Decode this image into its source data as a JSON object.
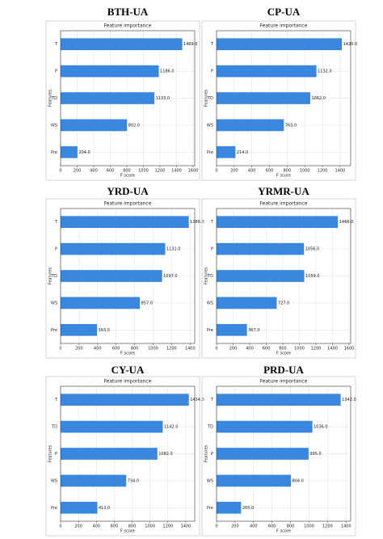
{
  "chart_data": [
    {
      "type": "barh",
      "label": "BTH-UA",
      "title": "Feature importance",
      "xlabel": "F score",
      "ylabel": "Features",
      "categories": [
        "T",
        "P",
        "TD",
        "WS",
        "Pre"
      ],
      "values": [
        1469,
        1186,
        1133,
        802,
        204
      ],
      "value_labels": [
        "1469.0",
        "1186.0",
        "1133.0",
        "802.0",
        "204.0"
      ],
      "color": "#3a87e0",
      "xlim": [
        0,
        1620
      ],
      "xticks": [
        0,
        200,
        400,
        600,
        800,
        1000,
        1200,
        1400,
        1600
      ],
      "grid": true
    },
    {
      "type": "barh",
      "label": "CP-UA",
      "title": "Feature importance",
      "xlabel": "F score",
      "ylabel": "Features",
      "categories": [
        "T",
        "P",
        "TD",
        "WS",
        "Pre"
      ],
      "values": [
        1420,
        1132,
        1062,
        763,
        214
      ],
      "value_labels": [
        "1420.0",
        "1132.0",
        "1062.0",
        "763.0",
        "214.0"
      ],
      "color": "#3a87e0",
      "xlim": [
        0,
        1520
      ],
      "xticks": [
        0,
        200,
        400,
        600,
        800,
        1000,
        1200,
        1400
      ],
      "grid": true
    },
    {
      "type": "barh",
      "label": "YRD-UA",
      "title": "Feature importance",
      "xlabel": "F score",
      "ylabel": "Features",
      "categories": [
        "T",
        "P",
        "TD",
        "WS",
        "Pre"
      ],
      "values": [
        1386,
        1131,
        1097,
        857,
        393
      ],
      "value_labels": [
        "1386.0",
        "1131.0",
        "1097.0",
        "857.0",
        "393.0"
      ],
      "color": "#3a87e0",
      "xlim": [
        0,
        1450
      ],
      "xticks": [
        0,
        200,
        400,
        600,
        800,
        1000,
        1200,
        1400
      ],
      "grid": true
    },
    {
      "type": "barh",
      "label": "YRMR-UA",
      "title": "Feature importance",
      "xlabel": "F score",
      "ylabel": "Features",
      "categories": [
        "T",
        "P",
        "TD",
        "WS",
        "Pre"
      ],
      "values": [
        1466,
        1056,
        1059,
        727,
        367
      ],
      "value_labels": [
        "1466.0",
        "1056.0",
        "1059.0",
        "727.0",
        "367.0"
      ],
      "color": "#3a87e0",
      "xlim": [
        0,
        1620
      ],
      "xticks": [
        0,
        200,
        400,
        600,
        800,
        1000,
        1200,
        1400,
        1600
      ],
      "grid": true
    },
    {
      "type": "barh",
      "label": "CY-UA",
      "title": "Feature importance",
      "xlabel": "F score",
      "ylabel": "Features",
      "categories": [
        "T",
        "TD",
        "P",
        "WS",
        "Pre"
      ],
      "values": [
        1434,
        1142,
        1082,
        734,
        411
      ],
      "value_labels": [
        "1434.0",
        "1142.0",
        "1082.0",
        "734.0",
        "411.0"
      ],
      "color": "#3a87e0",
      "xlim": [
        0,
        1500
      ],
      "xticks": [
        0,
        200,
        400,
        600,
        800,
        1000,
        1200,
        1400
      ],
      "grid": true
    },
    {
      "type": "barh",
      "label": "PRD-UA",
      "title": "Feature importance",
      "xlabel": "F score",
      "ylabel": "Features",
      "categories": [
        "T",
        "TD",
        "P",
        "WS",
        "Pre"
      ],
      "values": [
        1342,
        1036,
        995,
        804,
        265
      ],
      "value_labels": [
        "1342.0",
        "1036.0",
        "995.0",
        "804.0",
        "265.0"
      ],
      "color": "#3a87e0",
      "xlim": [
        0,
        1450
      ],
      "xticks": [
        0,
        200,
        400,
        600,
        800,
        1000,
        1200,
        1400
      ],
      "grid": true
    }
  ]
}
